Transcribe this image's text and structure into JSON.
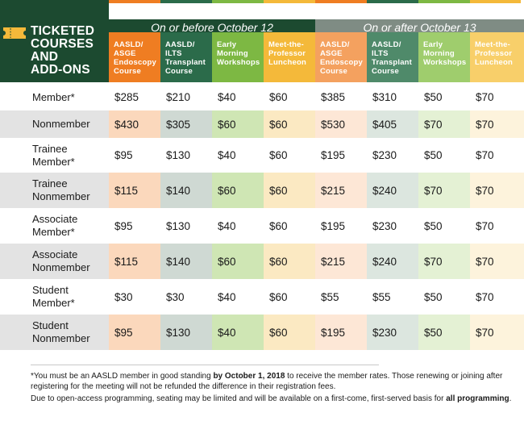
{
  "header": {
    "title_lines": [
      "TICKETED",
      "COURSES",
      "AND",
      "ADD-ONS"
    ],
    "period_before": "On or before October 12",
    "period_after": "On or after October 13",
    "columns": [
      {
        "lines": [
          "AASLD/",
          "ASGE",
          "Endoscopy",
          "Course"
        ],
        "color": "#ef7d22"
      },
      {
        "lines": [
          "AASLD/",
          "ILTS",
          "Transplant",
          "Course"
        ],
        "color": "#2b6b4a"
      },
      {
        "lines": [
          "Early",
          "Morning",
          "Workshops"
        ],
        "color": "#7db843"
      },
      {
        "lines": [
          "Meet-the-",
          "Professor",
          "Luncheon"
        ],
        "color": "#f4b93a"
      },
      {
        "lines": [
          "AASLD/",
          "ASGE",
          "Endoscopy",
          "Course"
        ],
        "color": "#f4a15f"
      },
      {
        "lines": [
          "AASLD/",
          "ILTS",
          "Transplant",
          "Course"
        ],
        "color": "#4f8a6a"
      },
      {
        "lines": [
          "Early",
          "Morning",
          "Workshops"
        ],
        "color": "#9fcd6d"
      },
      {
        "lines": [
          "Meet-the-",
          "Professor",
          "Luncheon"
        ],
        "color": "#f8cf6a"
      }
    ]
  },
  "rows": [
    {
      "label": [
        "Member*"
      ],
      "values": [
        "$285",
        "$210",
        "$40",
        "$60",
        "$385",
        "$310",
        "$50",
        "$70"
      ]
    },
    {
      "label": [
        "Nonmember"
      ],
      "values": [
        "$430",
        "$305",
        "$60",
        "$60",
        "$530",
        "$405",
        "$70",
        "$70"
      ]
    },
    {
      "label": [
        "Trainee",
        "Member*"
      ],
      "values": [
        "$95",
        "$130",
        "$40",
        "$60",
        "$195",
        "$230",
        "$50",
        "$70"
      ]
    },
    {
      "label": [
        "Trainee",
        "Nonmember"
      ],
      "values": [
        "$115",
        "$140",
        "$60",
        "$60",
        "$215",
        "$240",
        "$70",
        "$70"
      ]
    },
    {
      "label": [
        "Associate",
        "Member*"
      ],
      "values": [
        "$95",
        "$130",
        "$40",
        "$60",
        "$195",
        "$230",
        "$50",
        "$70"
      ]
    },
    {
      "label": [
        "Associate",
        "Nonmember"
      ],
      "values": [
        "$115",
        "$140",
        "$60",
        "$60",
        "$215",
        "$240",
        "$70",
        "$70"
      ]
    },
    {
      "label": [
        "Student",
        "Member*"
      ],
      "values": [
        "$30",
        "$30",
        "$40",
        "$60",
        "$55",
        "$55",
        "$50",
        "$70"
      ]
    },
    {
      "label": [
        "Student",
        "Nonmember"
      ],
      "values": [
        "$95",
        "$130",
        "$40",
        "$60",
        "$195",
        "$230",
        "$50",
        "$70"
      ]
    }
  ],
  "shading": {
    "odd_row_colors": [
      "#ffffff",
      "#ffffff",
      "#ffffff",
      "#ffffff",
      "#ffffff",
      "#ffffff",
      "#ffffff",
      "#ffffff",
      "#ffffff"
    ],
    "even_row_colors": [
      "#e3e3e3",
      "#fbd8bc",
      "#cfd9d3",
      "#cfe6b4",
      "#fbe9c2",
      "#fde7d6",
      "#dce6df",
      "#e4f1d4",
      "#fdf3dc"
    ]
  },
  "footnotes": {
    "note1_a": "*You must be an AASLD member in good standing ",
    "note1_b": "by October 1, 2018",
    "note1_c": " to receive the member rates. Those renewing or joining after registering for the meeting will not be refunded the difference in their registration fees.",
    "note2_a": "Due to open-access programming, seating may be limited and will be available on a first-come, first-served basis for ",
    "note2_b": "all programming",
    "note2_c": "."
  },
  "colors": {
    "title_bg": "#1c4a30",
    "period_before_bg": "#1c4a30",
    "period_after_bg": "#7f8c84",
    "ticket_icon": "#f4b93a"
  }
}
